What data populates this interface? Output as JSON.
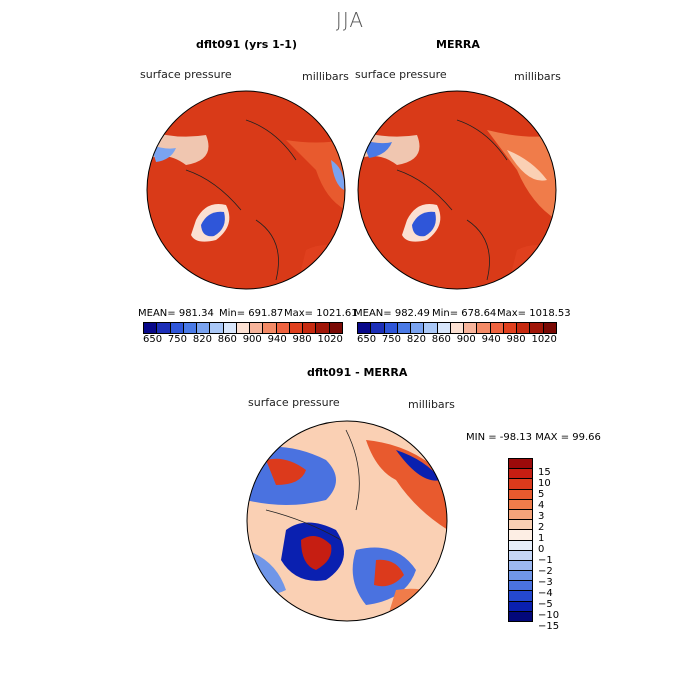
{
  "title": "JJA",
  "panels": {
    "left": {
      "title": "dflt091 (yrs 1-1)",
      "field_label": "surface pressure",
      "units_label": "millibars",
      "mean_label": "MEAN= 981.34",
      "min_label": "Min= 691.87",
      "max_label": "Max= 1021.61"
    },
    "right": {
      "title": "MERRA",
      "field_label": "surface pressure",
      "units_label": "millibars",
      "mean_label": "MEAN= 982.49",
      "min_label": "Min= 678.64",
      "max_label": "Max= 1018.53"
    },
    "diff": {
      "title": "dflt091 - MERRA",
      "field_label": "surface pressure",
      "units_label": "millibars",
      "minmax_label": "MIN = -98.13 MAX =  99.66"
    }
  },
  "colorbar_top": {
    "colors": [
      "#08088a",
      "#1c2fb8",
      "#2f56d9",
      "#4a7ae6",
      "#7aa3f0",
      "#aac8f7",
      "#d8e6fb",
      "#fbe0d2",
      "#f7b49b",
      "#f38a66",
      "#ee6340",
      "#e0401e",
      "#c62a10",
      "#a01608",
      "#7a0a05"
    ],
    "ticks": [
      "650",
      "750",
      "820",
      "860",
      "900",
      "940",
      "980",
      "1020"
    ]
  },
  "colorbar_diff": {
    "colors": [
      "#9c0a0a",
      "#c61e12",
      "#dc3a1c",
      "#e85a2e",
      "#f07c4a",
      "#f6a47a",
      "#fad0b4",
      "#fdeee4",
      "#e6eefa",
      "#c5d6f6",
      "#9cb8f0",
      "#7096e8",
      "#4a72e0",
      "#2448d0",
      "#0a20b0",
      "#03087a"
    ],
    "ticks": [
      "15",
      "10",
      "5",
      "4",
      "3",
      "2",
      "1",
      "0",
      "−1",
      "−2",
      "−3",
      "−4",
      "−5",
      "−10",
      "−15"
    ]
  }
}
